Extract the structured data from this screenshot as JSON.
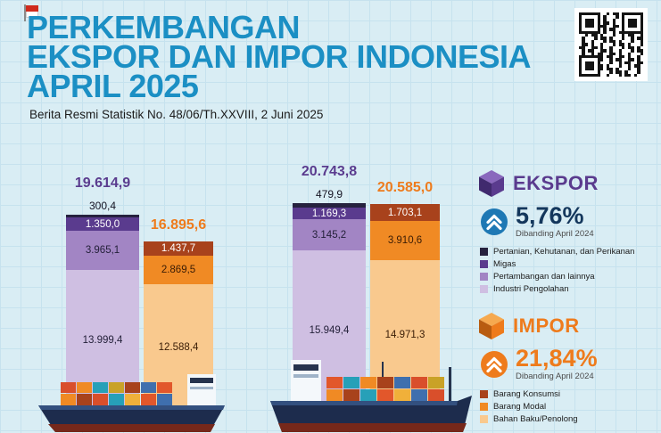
{
  "header": {
    "title_lines": [
      "PERKEMBANGAN",
      "EKSPOR DAN IMPOR INDONESIA",
      "APRIL 2025"
    ],
    "subtitle": "Berita Resmi Statistik No. 48/06/Th.XXVIII, 2 Juni 2025"
  },
  "colors": {
    "title": "#1b8fc4",
    "background": "#d9edf4",
    "grid": "#c6e2ee",
    "ekspor_accent": "#5a3b8e",
    "impor_accent": "#ee7b1c",
    "ekspor_pct_text": "#14375c",
    "segments": {
      "pertanian": "#26223f",
      "migas": "#5a3b8e",
      "pertambangan": "#a285c4",
      "industri": "#cfbfe2",
      "barang_konsumsi": "#a8421c",
      "barang_modal": "#f08a24",
      "bahan_baku": "#f9c98e"
    }
  },
  "chart_data": {
    "type": "bar",
    "stacked": true,
    "ylim": [
      0,
      20743.8
    ],
    "note_format": "Indonesian number format: dot = thousands, comma = decimal",
    "groups": [
      {
        "name": "April 2024",
        "bars": [
          {
            "id": "ekspor-april-2024",
            "kind": "ekspor",
            "total": 19614.9,
            "total_label": "19.614,9",
            "segments": [
              {
                "key": "pertanian",
                "value": 300.4,
                "label": "300,4",
                "label_pos": "above",
                "text_color": "#141322"
              },
              {
                "key": "migas",
                "value": 1350.0,
                "label": "1.350,0",
                "label_pos": "inside",
                "text_color": "#ffffff"
              },
              {
                "key": "pertambangan",
                "value": 3965.1,
                "label": "3.965,1",
                "label_pos": "inside",
                "text_color": "#221f38"
              },
              {
                "key": "industri",
                "value": 13999.4,
                "label": "13.999,4",
                "label_pos": "inside",
                "text_color": "#221f38"
              }
            ]
          },
          {
            "id": "impor-april-2024",
            "kind": "impor",
            "total": 16895.6,
            "total_label": "16.895,6",
            "segments": [
              {
                "key": "barang_konsumsi",
                "value": 1437.7,
                "label": "1.437,7",
                "label_pos": "inside",
                "text_color": "#ffffff"
              },
              {
                "key": "barang_modal",
                "value": 2869.5,
                "label": "2.869,5",
                "label_pos": "inside",
                "text_color": "#3a1c05"
              },
              {
                "key": "bahan_baku",
                "value": 12588.4,
                "label": "12.588,4",
                "label_pos": "inside",
                "text_color": "#3a1c05"
              }
            ]
          }
        ]
      },
      {
        "name": "April 2025",
        "bars": [
          {
            "id": "ekspor-april-2025",
            "kind": "ekspor",
            "total": 20743.8,
            "total_label": "20.743,8",
            "segments": [
              {
                "key": "pertanian",
                "value": 479.9,
                "label": "479,9",
                "label_pos": "above",
                "text_color": "#141322"
              },
              {
                "key": "migas",
                "value": 1169.3,
                "label": "1.169,3",
                "label_pos": "inside",
                "text_color": "#ffffff"
              },
              {
                "key": "pertambangan",
                "value": 3145.2,
                "label": "3.145,2",
                "label_pos": "inside",
                "text_color": "#221f38"
              },
              {
                "key": "industri",
                "value": 15949.4,
                "label": "15.949,4",
                "label_pos": "inside",
                "text_color": "#221f38"
              }
            ]
          },
          {
            "id": "impor-april-2025",
            "kind": "impor",
            "total": 20585.0,
            "total_label": "20.585,0",
            "segments": [
              {
                "key": "barang_konsumsi",
                "value": 1703.1,
                "label": "1.703,1",
                "label_pos": "inside",
                "text_color": "#ffffff"
              },
              {
                "key": "barang_modal",
                "value": 3910.6,
                "label": "3.910,6",
                "label_pos": "inside",
                "text_color": "#3a1c05"
              },
              {
                "key": "bahan_baku",
                "value": 14971.3,
                "label": "14.971,3",
                "label_pos": "inside",
                "text_color": "#3a1c05"
              }
            ]
          }
        ]
      }
    ]
  },
  "ekspor_panel": {
    "title": "EKSPOR",
    "pct": "5,76%",
    "compare_label": "Dibanding April 2024",
    "legend": [
      {
        "key": "pertanian",
        "label": "Pertanian, Kehutanan, dan Perikanan"
      },
      {
        "key": "migas",
        "label": "Migas"
      },
      {
        "key": "pertambangan",
        "label": "Pertambangan dan lainnya"
      },
      {
        "key": "industri",
        "label": "Industri Pengolahan"
      }
    ]
  },
  "impor_panel": {
    "title": "IMPOR",
    "pct": "21,84%",
    "compare_label": "Dibanding April 2024",
    "legend": [
      {
        "key": "barang_konsumsi",
        "label": "Barang Konsumsi"
      },
      {
        "key": "barang_modal",
        "label": "Barang Modal"
      },
      {
        "key": "bahan_baku",
        "label": "Bahan Baku/Penolong"
      }
    ]
  }
}
